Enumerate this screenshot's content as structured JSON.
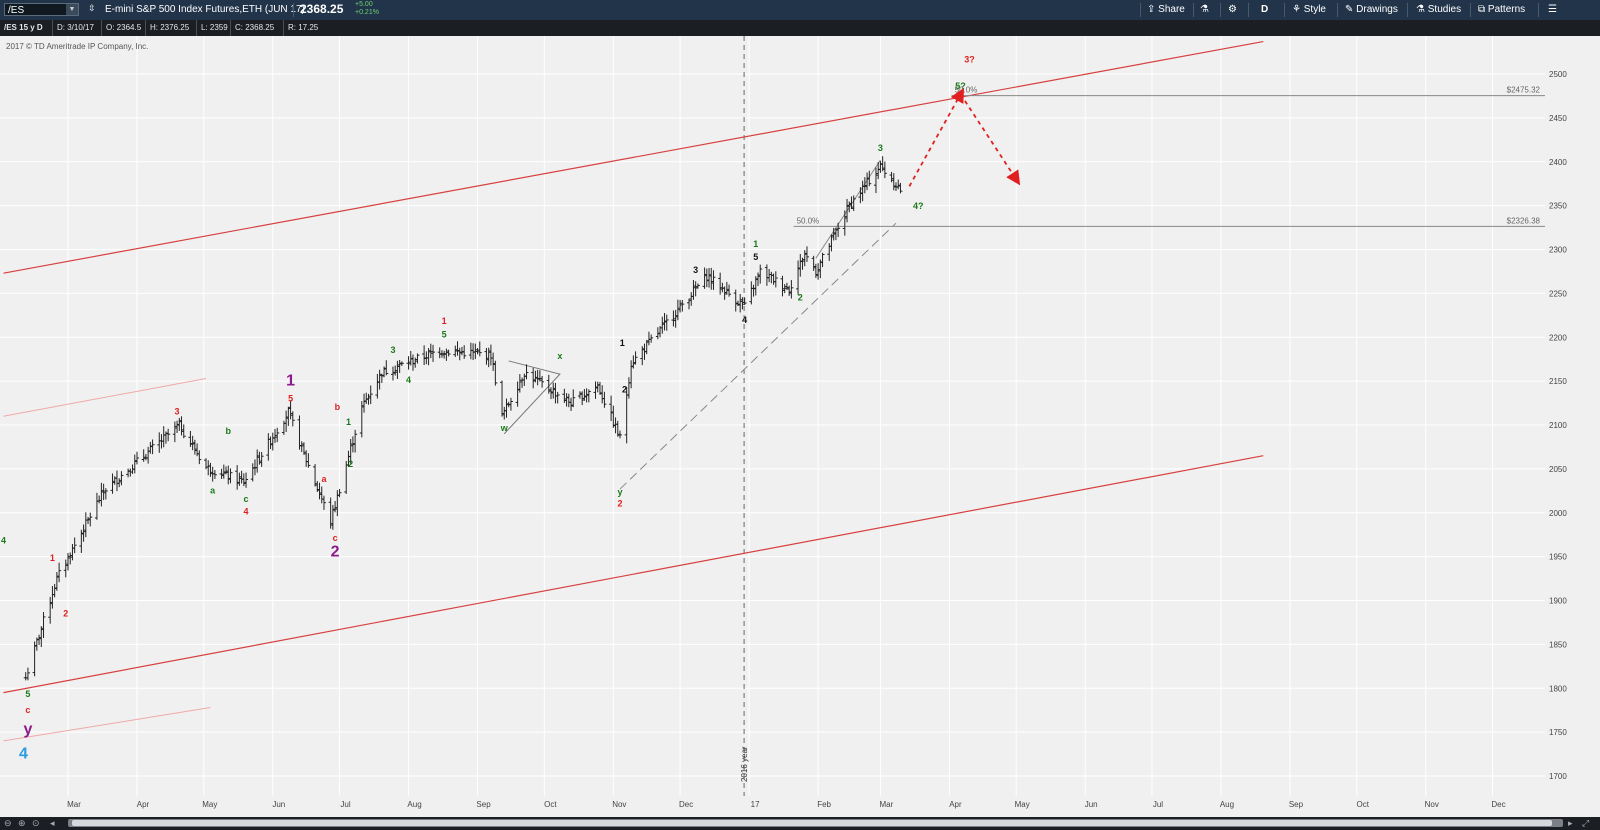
{
  "toolbar": {
    "symbol": "/ES",
    "instrument_name": "E-mini S&P 500 Index Futures,ETH (JUN 17)",
    "last_price": "2368.25",
    "change_points": "+5.00",
    "change_percent": "+0.21%",
    "share_label": "Share",
    "period_label": "D",
    "style_label": "Style",
    "drawings_label": "Drawings",
    "studies_label": "Studies",
    "patterns_label": "Patterns"
  },
  "infobar": {
    "chart_spec": "/ES 15 y D",
    "date": "D: 3/10/17",
    "open": "O: 2364.5",
    "high": "H: 2376.25",
    "low": "L: 2359",
    "close": "C: 2368.25",
    "range": "R: 17.25"
  },
  "copyright": "2017 © TD Ameritrade IP Company, Inc.",
  "colors": {
    "background": "#f0f0f0",
    "bars": "#222222",
    "channel": "#d84040",
    "channel_faint": "#f0a8a8",
    "label_red": "#e02020",
    "label_green": "#1a7a1a",
    "label_purple": "#8b1c8b",
    "label_blue": "#2a9ae0",
    "label_black": "#111111"
  },
  "chart_data": {
    "type": "ohlc",
    "interval": "daily",
    "y_axis_ticks": [
      1700,
      1750,
      1800,
      1850,
      1900,
      1950,
      2000,
      2050,
      2100,
      2150,
      2200,
      2250,
      2300,
      2350,
      2400,
      2450,
      2500
    ],
    "x_axis_labels": [
      "Mar",
      "Apr",
      "May",
      "Jun",
      "Jul",
      "Aug",
      "Sep",
      "Oct",
      "Nov",
      "Dec",
      "17",
      "Feb",
      "Mar",
      "Apr",
      "May",
      "Jun",
      "Jul",
      "Aug",
      "Sep",
      "Oct",
      "Nov",
      "Dec"
    ],
    "vertical_marker_label": "2016 year",
    "price_levels": [
      {
        "pct_label": "50.0%",
        "price_label": "$2475.32",
        "value": 2475.32
      },
      {
        "pct_label": "50.0%",
        "price_label": "$2326.38",
        "value": 2326.38
      }
    ],
    "price_path": [
      {
        "t": "2016-02-11",
        "p": 1812
      },
      {
        "t": "2016-02-25",
        "p": 1925
      },
      {
        "t": "2016-03-17",
        "p": 2025
      },
      {
        "t": "2016-04-20",
        "p": 2100
      },
      {
        "t": "2016-05-02",
        "p": 2052
      },
      {
        "t": "2016-05-19",
        "p": 2035
      },
      {
        "t": "2016-06-08",
        "p": 2115
      },
      {
        "t": "2016-06-16",
        "p": 2060
      },
      {
        "t": "2016-06-27",
        "p": 1990
      },
      {
        "t": "2016-07-11",
        "p": 2120
      },
      {
        "t": "2016-07-20",
        "p": 2160
      },
      {
        "t": "2016-08-15",
        "p": 2185
      },
      {
        "t": "2016-09-07",
        "p": 2180
      },
      {
        "t": "2016-09-12",
        "p": 2110
      },
      {
        "t": "2016-09-22",
        "p": 2160
      },
      {
        "t": "2016-10-13",
        "p": 2125
      },
      {
        "t": "2016-10-25",
        "p": 2145
      },
      {
        "t": "2016-11-04",
        "p": 2085
      },
      {
        "t": "2016-11-09",
        "p": 2170
      },
      {
        "t": "2016-12-13",
        "p": 2270
      },
      {
        "t": "2016-12-30",
        "p": 2235
      },
      {
        "t": "2017-01-06",
        "p": 2275
      },
      {
        "t": "2017-01-19",
        "p": 2255
      },
      {
        "t": "2017-01-26",
        "p": 2295
      },
      {
        "t": "2017-01-31",
        "p": 2275
      },
      {
        "t": "2017-02-15",
        "p": 2350
      },
      {
        "t": "2017-03-01",
        "p": 2395
      },
      {
        "t": "2017-03-10",
        "p": 2368
      }
    ],
    "channel_lines": [
      {
        "name": "upper",
        "from": {
          "t": "2016-02-01",
          "p": 2273
        },
        "to": {
          "t": "2017-08-20",
          "p": 2537
        }
      },
      {
        "name": "lower",
        "from": {
          "t": "2016-02-01",
          "p": 1795
        },
        "to": {
          "t": "2017-08-20",
          "p": 2065
        }
      }
    ],
    "wave_labels": [
      {
        "text": "4",
        "t": "2016-02-01",
        "p": 1965,
        "color": "green"
      },
      {
        "text": "1",
        "t": "2016-02-23",
        "p": 1945,
        "color": "red"
      },
      {
        "text": "2",
        "t": "2016-02-29",
        "p": 1882,
        "color": "red"
      },
      {
        "text": "5",
        "t": "2016-02-12",
        "p": 1790,
        "color": "green"
      },
      {
        "text": "c",
        "t": "2016-02-12",
        "p": 1772,
        "color": "red"
      },
      {
        "text": "y",
        "t": "2016-02-12",
        "p": 1748,
        "color": "purple",
        "size": "large"
      },
      {
        "text": "4",
        "t": "2016-02-10",
        "p": 1720,
        "color": "blue",
        "size": "large"
      },
      {
        "text": "3",
        "t": "2016-04-19",
        "p": 2112,
        "color": "red"
      },
      {
        "text": "b",
        "t": "2016-05-12",
        "p": 2090,
        "color": "green"
      },
      {
        "text": "a",
        "t": "2016-05-05",
        "p": 2022,
        "color": "green"
      },
      {
        "text": "c",
        "t": "2016-05-20",
        "p": 2012,
        "color": "green"
      },
      {
        "text": "4",
        "t": "2016-05-20",
        "p": 1998,
        "color": "red"
      },
      {
        "text": "1",
        "t": "2016-06-09",
        "p": 2145,
        "color": "purple",
        "size": "large"
      },
      {
        "text": "5",
        "t": "2016-06-09",
        "p": 2127,
        "color": "red"
      },
      {
        "text": "a",
        "t": "2016-06-24",
        "p": 2035,
        "color": "red"
      },
      {
        "text": "b",
        "t": "2016-06-30",
        "p": 2117,
        "color": "red"
      },
      {
        "text": "c",
        "t": "2016-06-29",
        "p": 1968,
        "color": "red"
      },
      {
        "text": "2",
        "t": "2016-06-29",
        "p": 1950,
        "color": "purple",
        "size": "large"
      },
      {
        "text": "1",
        "t": "2016-07-05",
        "p": 2100,
        "color": "green"
      },
      {
        "text": "2",
        "t": "2016-07-06",
        "p": 2052,
        "color": "green"
      },
      {
        "text": "3",
        "t": "2016-07-25",
        "p": 2182,
        "color": "green"
      },
      {
        "text": "4",
        "t": "2016-08-01",
        "p": 2148,
        "color": "green"
      },
      {
        "text": "1",
        "t": "2016-08-17",
        "p": 2215,
        "color": "red"
      },
      {
        "text": "5",
        "t": "2016-08-17",
        "p": 2200,
        "color": "green"
      },
      {
        "text": "w",
        "t": "2016-09-13",
        "p": 2093,
        "color": "green"
      },
      {
        "text": "x",
        "t": "2016-10-08",
        "p": 2175,
        "color": "green"
      },
      {
        "text": "y",
        "t": "2016-11-04",
        "p": 2020,
        "color": "green"
      },
      {
        "text": "2",
        "t": "2016-11-04",
        "p": 2007,
        "color": "red"
      },
      {
        "text": "1",
        "t": "2016-11-05",
        "p": 2190,
        "color": "black"
      },
      {
        "text": "2",
        "t": "2016-11-06",
        "p": 2137,
        "color": "black"
      },
      {
        "text": "3",
        "t": "2016-12-08",
        "p": 2273,
        "color": "black"
      },
      {
        "text": "4",
        "t": "2016-12-30",
        "p": 2216,
        "color": "black"
      },
      {
        "text": "1",
        "t": "2017-01-04",
        "p": 2303,
        "color": "green"
      },
      {
        "text": "5",
        "t": "2017-01-04",
        "p": 2288,
        "color": "black"
      },
      {
        "text": "2",
        "t": "2017-01-24",
        "p": 2242,
        "color": "green"
      },
      {
        "text": "3",
        "t": "2017-03-01",
        "p": 2412,
        "color": "green"
      },
      {
        "text": "4?",
        "t": "2017-03-18",
        "p": 2346,
        "color": "green"
      },
      {
        "text": "5?",
        "t": "2017-04-06",
        "p": 2483,
        "color": "green"
      },
      {
        "text": "3?",
        "t": "2017-04-10",
        "p": 2513,
        "color": "red"
      }
    ],
    "projection": [
      {
        "t": "2017-03-14",
        "p": 2372
      },
      {
        "t": "2017-04-06",
        "p": 2477
      },
      {
        "t": "2017-05-01",
        "p": 2380
      }
    ],
    "triangle": [
      {
        "t": "2016-09-13",
        "p": 2090
      },
      {
        "t": "2016-10-08",
        "p": 2158
      },
      {
        "t": "2016-09-15",
        "p": 2173
      }
    ],
    "support_line": {
      "from": {
        "t": "2016-11-04",
        "p": 2027
      },
      "to": {
        "t": "2017-03-08",
        "p": 2330
      }
    },
    "wedge_line": {
      "from": {
        "t": "2017-01-31",
        "p": 2290
      },
      "to": {
        "t": "2017-03-01",
        "p": 2402
      }
    }
  }
}
